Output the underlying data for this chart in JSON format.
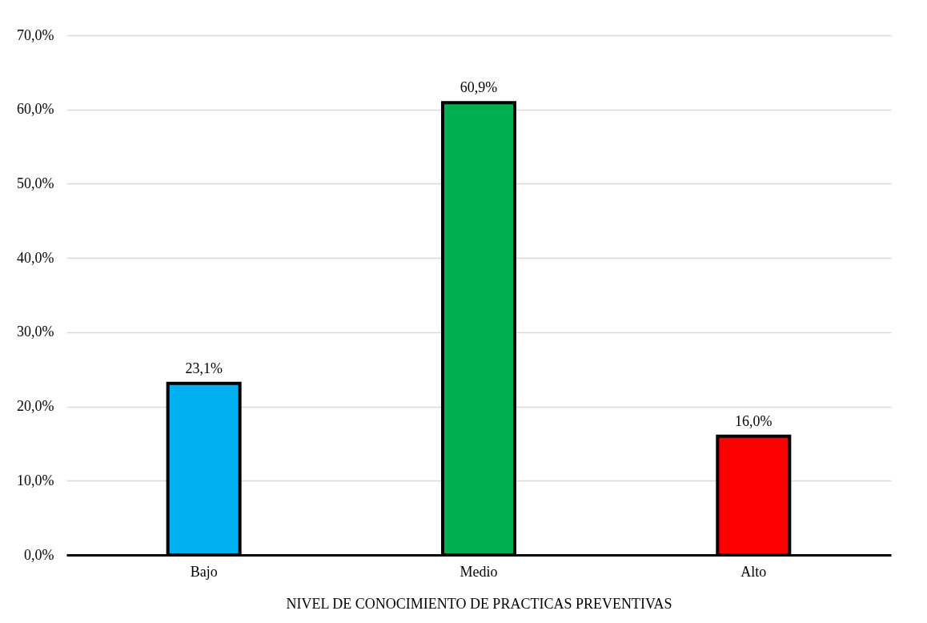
{
  "chart_data": {
    "type": "bar",
    "xlabel": "NIVEL DE CONOCIMIENTO DE PRACTICAS PREVENTIVAS",
    "categories": [
      "Bajo",
      "Medio",
      "Alto"
    ],
    "values": [
      23.1,
      60.9,
      16.0
    ],
    "colors": [
      "#00b0f0",
      "#00b050",
      "#ff0000"
    ],
    "value_labels": [
      "23,1%",
      "60,9%",
      "16,0%"
    ],
    "ylim": [
      0,
      70
    ],
    "yticks": [
      {
        "value": 0,
        "label": "0,0%"
      },
      {
        "value": 10,
        "label": "10,0%"
      },
      {
        "value": 20,
        "label": "20,0%"
      },
      {
        "value": 30,
        "label": "30,0%"
      },
      {
        "value": 40,
        "label": "40,0%"
      },
      {
        "value": 50,
        "label": "50,0%"
      },
      {
        "value": 60,
        "label": "60,0%"
      },
      {
        "value": 70,
        "label": "70,0%"
      }
    ],
    "grid": "y"
  }
}
